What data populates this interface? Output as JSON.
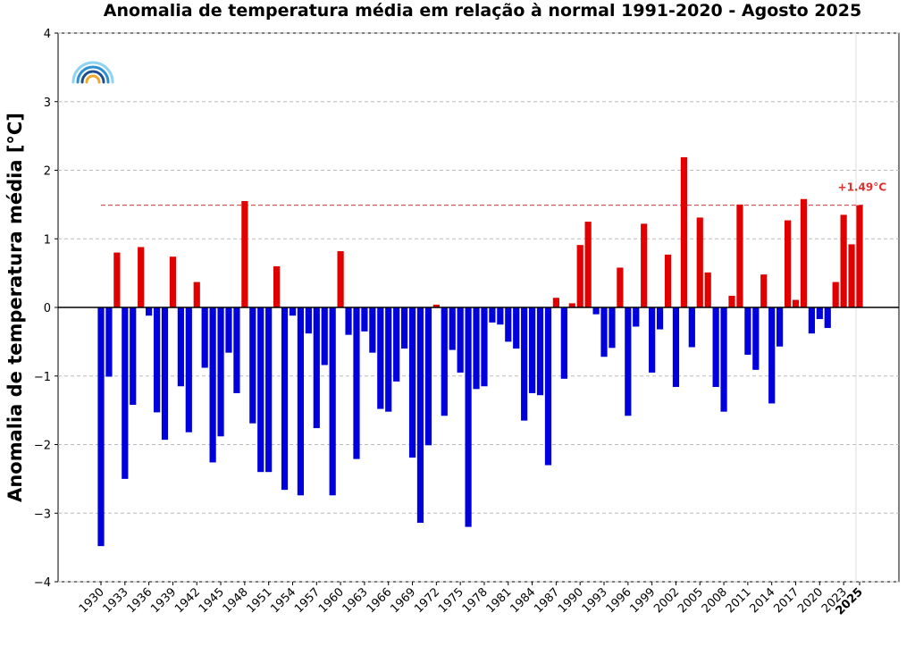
{
  "chart_data": {
    "type": "bar",
    "title": "Anomalia de temperatura média em relação à normal 1991-2020 - Agosto 2025",
    "y_label": "Anomalia de temperatura média [°C]",
    "categories": [
      "1930",
      null,
      null,
      "1933",
      null,
      null,
      "1936",
      null,
      null,
      "1939",
      null,
      null,
      "1942",
      null,
      null,
      "1945",
      null,
      null,
      "1948",
      null,
      null,
      "1951",
      null,
      null,
      "1954",
      null,
      null,
      "1957",
      null,
      null,
      "1960",
      null,
      null,
      "1963",
      null,
      null,
      "1966",
      null,
      null,
      "1969",
      null,
      null,
      "1972",
      null,
      null,
      "1975",
      null,
      null,
      "1978",
      null,
      null,
      "1981",
      null,
      null,
      "1984",
      null,
      null,
      "1987",
      null,
      null,
      "1990",
      null,
      null,
      "1993",
      null,
      null,
      "1996",
      null,
      null,
      "1999",
      null,
      null,
      "2002",
      null,
      null,
      "2005",
      null,
      null,
      "2008",
      null,
      null,
      "2011",
      null,
      null,
      "2014",
      null,
      null,
      "2017",
      null,
      null,
      "2020",
      null,
      null,
      "2023",
      null,
      "2025"
    ],
    "values": [
      -3.48,
      -1.01,
      0.8,
      -2.5,
      -1.42,
      0.88,
      -0.12,
      -1.53,
      -1.93,
      0.74,
      -1.15,
      -1.82,
      0.37,
      -0.88,
      -2.26,
      -1.88,
      -0.66,
      -1.25,
      1.55,
      -1.69,
      -2.4,
      -2.4,
      0.6,
      -2.66,
      -0.12,
      -2.74,
      -0.38,
      -1.76,
      -0.84,
      -2.74,
      0.82,
      -0.4,
      -2.21,
      -0.35,
      -0.66,
      -1.48,
      -1.52,
      -1.08,
      -0.6,
      -2.19,
      -3.14,
      -2.01,
      0.04,
      -1.58,
      -0.62,
      -0.95,
      -3.2,
      -1.19,
      -1.15,
      -0.22,
      -0.25,
      -0.5,
      -0.6,
      -1.65,
      -1.25,
      -1.28,
      -2.3,
      0.14,
      -1.04,
      0.06,
      0.91,
      1.25,
      -0.1,
      -0.72,
      -0.59,
      0.58,
      -1.58,
      -0.28,
      1.22,
      -0.95,
      -0.32,
      0.77,
      -1.16,
      2.19,
      -0.58,
      1.31,
      0.51,
      -1.16,
      -1.52,
      0.17,
      1.5,
      -0.69,
      -0.91,
      0.48,
      -1.4,
      -0.57,
      1.27,
      0.11,
      1.58,
      -0.38,
      -0.17,
      -0.3,
      0.37,
      1.35,
      0.92,
      1.49
    ],
    "positive_color": "#e00000",
    "negative_color": "#0000dd",
    "ylim": [
      -4,
      4
    ],
    "yticks": [
      {
        "value": -4,
        "label": "−4"
      },
      {
        "value": -3,
        "label": "−3"
      },
      {
        "value": -2,
        "label": "−2"
      },
      {
        "value": -1,
        "label": "−1"
      },
      0,
      1,
      2,
      3,
      4
    ],
    "grid": true,
    "reference_line": {
      "value": 1.49,
      "label": "+1.49°C",
      "color": "#e03030"
    }
  }
}
